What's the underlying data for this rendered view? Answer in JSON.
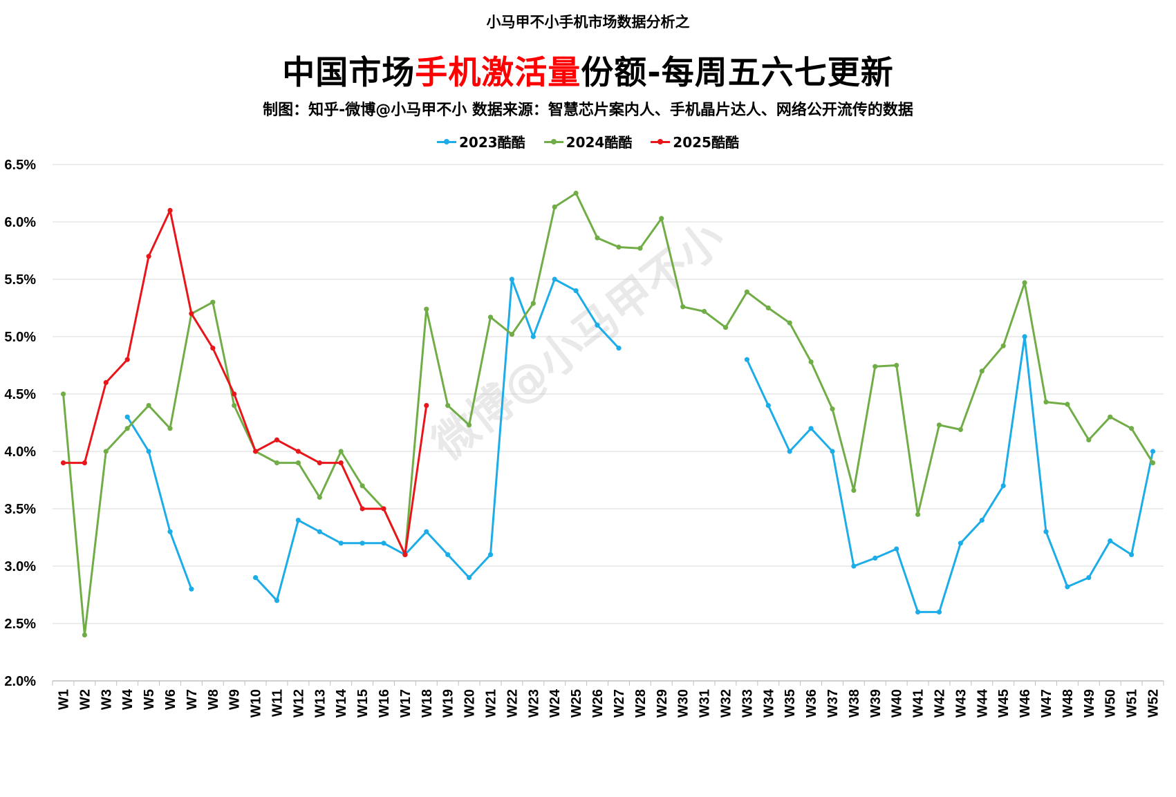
{
  "header": {
    "supertitle": "小马甲不小手机市场数据分析之",
    "title_pre": "中国市场",
    "title_highlight": "手机激活量",
    "title_post": "份额-每周五六七更新",
    "subtitle": "制图：知乎-微博@小马甲不小  数据来源：智慧芯片案内人、手机晶片达人、网络公开流传的数据"
  },
  "watermark": "微博@小马甲不小",
  "colors": {
    "s2023": "#1cace8",
    "s2024": "#71ad47",
    "s2025": "#e8161a",
    "title_highlight": "#ff0000",
    "grid": "#d9d9d9"
  },
  "chart_data": {
    "type": "line",
    "title": "中国市场手机激活量份额-每周五六七更新",
    "ylim": [
      2.0,
      6.5
    ],
    "y_ticks": [
      "2.0%",
      "2.5%",
      "3.0%",
      "3.5%",
      "4.0%",
      "4.5%",
      "5.0%",
      "5.5%",
      "6.0%",
      "6.5%"
    ],
    "grid": true,
    "legend_position": "top",
    "categories": [
      "W1",
      "W2",
      "W3",
      "W4",
      "W5",
      "W6",
      "W7",
      "W8",
      "W9",
      "W10",
      "W11",
      "W12",
      "W13",
      "W14",
      "W15",
      "W16",
      "W17",
      "W18",
      "W19",
      "W20",
      "W21",
      "W22",
      "W23",
      "W24",
      "W25",
      "W26",
      "W27",
      "W28",
      "W29",
      "W30",
      "W31",
      "W32",
      "W33",
      "W34",
      "W35",
      "W36",
      "W37",
      "W38",
      "W39",
      "W40",
      "W41",
      "W42",
      "W43",
      "W44",
      "W45",
      "W46",
      "W47",
      "W48",
      "W49",
      "W50",
      "W51",
      "W52"
    ],
    "series": [
      {
        "name": "2023酷酷",
        "values": [
          null,
          null,
          null,
          4.3,
          4.0,
          3.3,
          2.8,
          null,
          null,
          2.9,
          2.7,
          3.4,
          3.3,
          3.2,
          3.2,
          3.2,
          3.1,
          3.3,
          3.1,
          2.9,
          3.1,
          5.5,
          5.0,
          5.5,
          5.4,
          5.1,
          4.9,
          null,
          null,
          null,
          null,
          null,
          4.8,
          4.4,
          4.0,
          4.2,
          4.0,
          3.0,
          3.07,
          3.15,
          2.6,
          2.6,
          3.2,
          3.4,
          3.7,
          5.0,
          3.3,
          2.82,
          2.9,
          3.22,
          3.1,
          4.0
        ]
      },
      {
        "name": "2024酷酷",
        "values": [
          4.5,
          2.4,
          4.0,
          4.2,
          4.4,
          4.2,
          5.2,
          5.3,
          4.4,
          4.0,
          3.9,
          3.9,
          3.6,
          4.0,
          3.7,
          3.5,
          3.1,
          5.24,
          4.4,
          4.23,
          5.17,
          5.02,
          5.29,
          6.13,
          6.25,
          5.86,
          5.78,
          5.77,
          6.03,
          5.26,
          5.22,
          5.08,
          5.39,
          5.25,
          5.12,
          4.78,
          4.37,
          3.66,
          4.74,
          4.75,
          3.45,
          4.23,
          4.19,
          4.7,
          4.92,
          5.47,
          4.43,
          4.41,
          4.1,
          4.3,
          4.2,
          3.9
        ]
      },
      {
        "name": "2025酷酷",
        "values": [
          3.9,
          3.9,
          4.6,
          4.8,
          5.7,
          6.1,
          5.2,
          4.9,
          4.5,
          4.0,
          4.1,
          4.0,
          3.9,
          3.9,
          3.5,
          3.5,
          3.1,
          4.4,
          null,
          null,
          null,
          null,
          null,
          null,
          null,
          null,
          null,
          null,
          null,
          null,
          null,
          null,
          null,
          null,
          null,
          null,
          null,
          null,
          null,
          null,
          null,
          null,
          null,
          null,
          null,
          null,
          null,
          null,
          null,
          null,
          null,
          null
        ]
      }
    ]
  }
}
